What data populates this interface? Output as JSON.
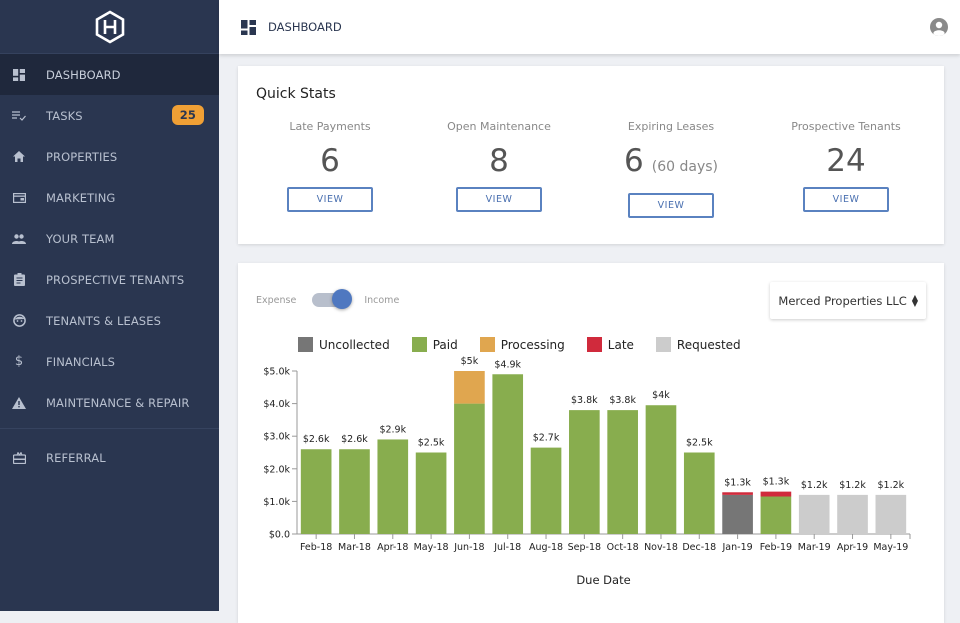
{
  "sidebar": {
    "logo": "hexagon-h-logo",
    "items": [
      {
        "label": "DASHBOARD",
        "icon": "dashboard-icon",
        "active": true
      },
      {
        "label": "TASKS",
        "icon": "tasks-icon",
        "badge": "25"
      },
      {
        "label": "PROPERTIES",
        "icon": "home-icon"
      },
      {
        "label": "MARKETING",
        "icon": "marketing-icon"
      },
      {
        "label": "YOUR TEAM",
        "icon": "team-icon"
      },
      {
        "label": "PROSPECTIVE TENANTS",
        "icon": "clipboard-icon"
      },
      {
        "label": "TENANTS & LEASES",
        "icon": "face-icon"
      },
      {
        "label": "FINANCIALS",
        "icon": "dollar-icon"
      },
      {
        "label": "MAINTENANCE & REPAIR",
        "icon": "warning-icon"
      }
    ],
    "referral": {
      "label": "REFERRAL",
      "icon": "gift-card-icon"
    }
  },
  "topbar": {
    "title": "DASHBOARD",
    "icon": "dashboard-icon",
    "user_icon": "account-circle-icon"
  },
  "quick_stats": {
    "title": "Quick Stats",
    "view_label": "VIEW",
    "stats": [
      {
        "label": "Late Payments",
        "value": "6",
        "sub": ""
      },
      {
        "label": "Open Maintenance",
        "value": "8",
        "sub": ""
      },
      {
        "label": "Expiring Leases",
        "value": "6",
        "sub": "(60 days)"
      },
      {
        "label": "Prospective Tenants",
        "value": "24",
        "sub": ""
      }
    ]
  },
  "chart_panel": {
    "toggle_left": "Expense",
    "toggle_right": "Income",
    "toggle_state": "Income",
    "property_select": "Merced Properties LLC"
  },
  "colors": {
    "uncollected": "#767676",
    "paid": "#88ad4e",
    "processing": "#e0a64f",
    "late": "#d02a3c",
    "requested": "#cccccc",
    "accent": "#4f78c0",
    "badge": "#f0a035"
  },
  "chart_data": {
    "type": "bar",
    "stacked": true,
    "title": "",
    "xlabel": "Due Date",
    "ylabel": "",
    "ylim": [
      0,
      5000
    ],
    "yticks": [
      "$0.0",
      "$1.0k",
      "$2.0k",
      "$3.0k",
      "$4.0k",
      "$5.0k"
    ],
    "ytick_values": [
      0,
      1000,
      2000,
      3000,
      4000,
      5000
    ],
    "legend": [
      "Uncollected",
      "Paid",
      "Processing",
      "Late",
      "Requested"
    ],
    "legend_placement": "top",
    "categories": [
      "Feb-18",
      "Mar-18",
      "Apr-18",
      "May-18",
      "Jun-18",
      "Jul-18",
      "Aug-18",
      "Sep-18",
      "Oct-18",
      "Nov-18",
      "Dec-18",
      "Jan-19",
      "Feb-19",
      "Mar-19",
      "Apr-19",
      "May-19"
    ],
    "series": [
      {
        "name": "Uncollected",
        "key": "uncollected",
        "values": [
          0,
          0,
          0,
          0,
          0,
          0,
          0,
          0,
          0,
          0,
          0,
          1200,
          0,
          0,
          0,
          0
        ]
      },
      {
        "name": "Paid",
        "key": "paid",
        "values": [
          2600,
          2600,
          2900,
          2500,
          4000,
          4900,
          2650,
          3800,
          3800,
          3950,
          2500,
          0,
          1150,
          0,
          0,
          0
        ]
      },
      {
        "name": "Processing",
        "key": "processing",
        "values": [
          0,
          0,
          0,
          0,
          1000,
          0,
          0,
          0,
          0,
          0,
          0,
          0,
          0,
          0,
          0,
          0
        ]
      },
      {
        "name": "Late",
        "key": "late",
        "values": [
          0,
          0,
          0,
          0,
          0,
          0,
          0,
          0,
          0,
          0,
          0,
          80,
          150,
          0,
          0,
          0
        ]
      },
      {
        "name": "Requested",
        "key": "requested",
        "values": [
          0,
          0,
          0,
          0,
          0,
          0,
          0,
          0,
          0,
          0,
          0,
          0,
          0,
          1200,
          1200,
          1200
        ]
      }
    ],
    "data_labels": [
      "$2.6k",
      "$2.6k",
      "$2.9k",
      "$2.5k",
      "$5k",
      "$4.9k",
      "$2.7k",
      "$3.8k",
      "$3.8k",
      "$4k",
      "$2.5k",
      "$1.3k",
      "$1.3k",
      "$1.2k",
      "$1.2k",
      "$1.2k"
    ]
  }
}
